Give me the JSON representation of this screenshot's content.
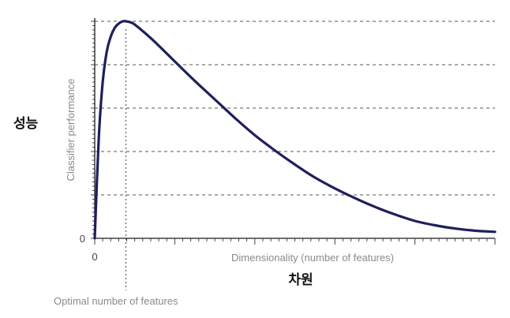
{
  "chart_data": {
    "type": "line",
    "ylabel": "Classifier performance",
    "ylabel_ko": "성능",
    "xlabel": "Dimensionality (number of features)",
    "xlabel_ko": "차원",
    "x_tick_labels": [
      "0"
    ],
    "y_tick_labels": [
      "0"
    ],
    "annotation": "Optimal number of features",
    "xlim": [
      0,
      1
    ],
    "ylim": [
      0,
      1
    ],
    "grid": "horizontal-dashed",
    "optimal_x": 0.078,
    "series": [
      {
        "x": [
          0,
          0.01,
          0.02,
          0.03,
          0.04,
          0.05,
          0.06,
          0.07,
          0.078,
          0.09,
          0.1,
          0.12,
          0.15,
          0.2,
          0.25,
          0.3,
          0.35,
          0.4,
          0.45,
          0.5,
          0.55,
          0.6,
          0.65,
          0.7,
          0.75,
          0.8,
          0.85,
          0.9,
          0.95,
          1.0
        ],
        "y": [
          0,
          0.46,
          0.72,
          0.86,
          0.93,
          0.97,
          0.99,
          1.0,
          1.0,
          0.995,
          0.985,
          0.955,
          0.905,
          0.815,
          0.725,
          0.64,
          0.555,
          0.475,
          0.405,
          0.34,
          0.28,
          0.23,
          0.185,
          0.145,
          0.11,
          0.08,
          0.06,
          0.045,
          0.035,
          0.03
        ]
      }
    ],
    "colors": {
      "curve": "#1f1f5c",
      "axis": "#444444",
      "label": "#8a8a8a"
    }
  }
}
